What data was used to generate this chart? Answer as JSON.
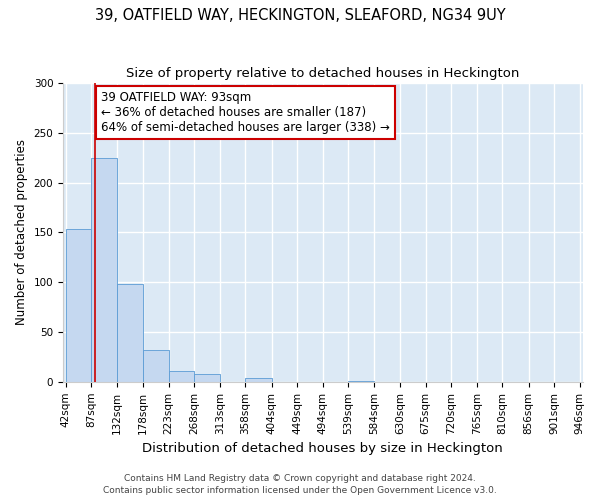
{
  "title_line1": "39, OATFIELD WAY, HECKINGTON, SLEAFORD, NG34 9UY",
  "title_line2": "Size of property relative to detached houses in Heckington",
  "xlabel": "Distribution of detached houses by size in Heckington",
  "ylabel": "Number of detached properties",
  "bar_edges": [
    42,
    87,
    132,
    178,
    223,
    268,
    313,
    358,
    404,
    449,
    494,
    539,
    584,
    630,
    675,
    720,
    765,
    810,
    856,
    901,
    946
  ],
  "bar_heights": [
    153,
    225,
    98,
    32,
    11,
    8,
    0,
    4,
    0,
    0,
    0,
    1,
    0,
    0,
    0,
    0,
    0,
    0,
    0,
    0
  ],
  "bar_color": "#c5d8f0",
  "bar_edge_color": "#5b9bd5",
  "background_color": "#dce9f5",
  "grid_color": "#ffffff",
  "vline_x": 93,
  "vline_color": "#cc0000",
  "annotation_text": "39 OATFIELD WAY: 93sqm\n← 36% of detached houses are smaller (187)\n64% of semi-detached houses are larger (338) →",
  "annotation_box_color": "#ffffff",
  "annotation_box_edge_color": "#cc0000",
  "ylim": [
    0,
    300
  ],
  "yticks": [
    0,
    50,
    100,
    150,
    200,
    250,
    300
  ],
  "footer_line1": "Contains HM Land Registry data © Crown copyright and database right 2024.",
  "footer_line2": "Contains public sector information licensed under the Open Government Licence v3.0.",
  "title_fontsize": 10.5,
  "subtitle_fontsize": 9.5,
  "xlabel_fontsize": 9.5,
  "ylabel_fontsize": 8.5,
  "tick_fontsize": 7.5,
  "annotation_fontsize": 8.5,
  "footer_fontsize": 6.5,
  "fig_width": 6.0,
  "fig_height": 5.0,
  "fig_dpi": 100
}
